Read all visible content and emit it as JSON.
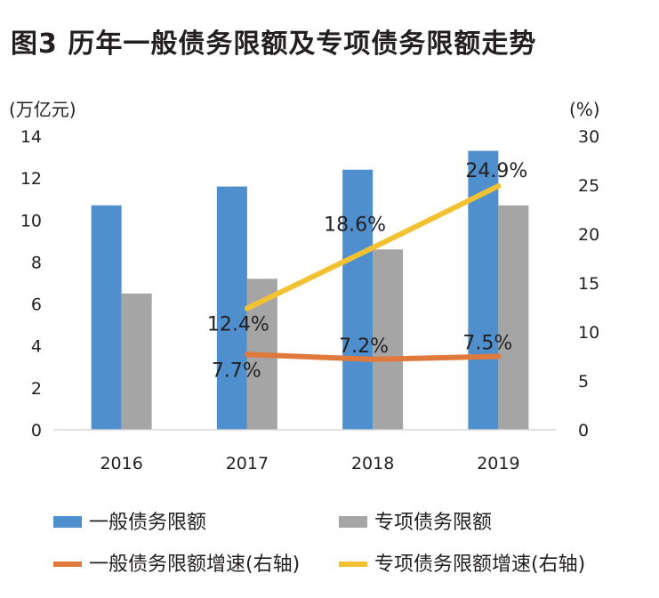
{
  "title": "图3   历年一般债务限额及专项债务限额走势",
  "chart_data": {
    "type": "bar",
    "categories": [
      "2016",
      "2017",
      "2018",
      "2019"
    ],
    "left_axis": {
      "unit": "(万亿元)",
      "ylim": [
        0,
        14
      ],
      "ticks": [
        "0",
        "2",
        "4",
        "6",
        "8",
        "10",
        "12",
        "14"
      ]
    },
    "right_axis": {
      "unit": "(%)",
      "ylim": [
        0,
        30
      ],
      "ticks": [
        "0",
        "5",
        "10",
        "15",
        "20",
        "25",
        "30"
      ]
    },
    "bar_series": [
      {
        "name": "一般债务限额",
        "color": "#4f8fcd",
        "values": [
          10.7,
          11.6,
          12.4,
          13.3
        ]
      },
      {
        "name": "专项债务限额",
        "color": "#a5a5a5",
        "values": [
          6.5,
          7.2,
          8.6,
          10.7
        ]
      }
    ],
    "line_series": [
      {
        "name": "一般债务限额增速(右轴)",
        "color": "#e07a3c",
        "x": [
          "2017",
          "2018",
          "2019"
        ],
        "values": [
          7.7,
          7.2,
          7.5
        ],
        "labels": [
          "7.7%",
          "7.2%",
          "7.5%"
        ]
      },
      {
        "name": "专项债务限额增速(右轴)",
        "color": "#f2c232",
        "x": [
          "2017",
          "2018",
          "2019"
        ],
        "values": [
          12.4,
          18.6,
          24.9
        ],
        "labels": [
          "12.4%",
          "18.6%",
          "24.9%"
        ]
      }
    ],
    "grid": false,
    "legend_position": "bottom"
  }
}
